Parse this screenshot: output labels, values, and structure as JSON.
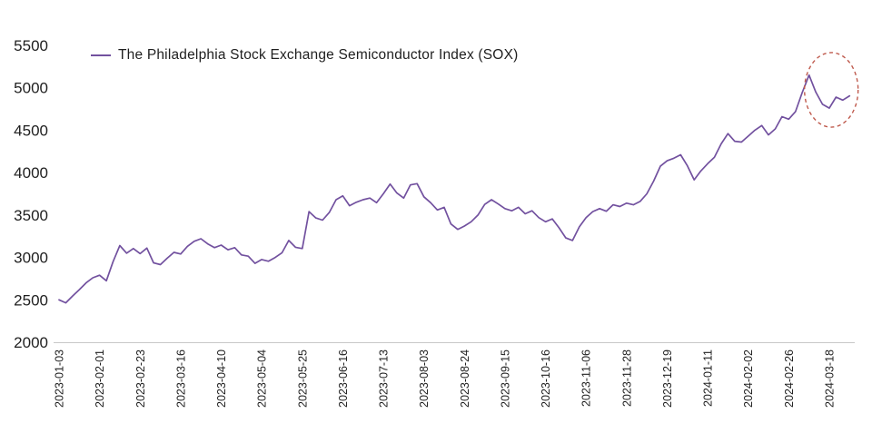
{
  "legend": {
    "label": "The Philadelphia Stock Exchange Semiconductor Index (SOX)"
  },
  "colors": {
    "line": "#72519f",
    "annotation": "#bf5a4d",
    "axis": "#c8c8c8",
    "text": "#1f1f1f"
  },
  "chart_data": {
    "type": "line",
    "title": "",
    "legend_entries": [
      "The Philadelphia Stock Exchange Semiconductor Index (SOX)"
    ],
    "legend_position": "top-left",
    "grid": false,
    "ylim": [
      2000,
      5500
    ],
    "yticks": [
      2000,
      2500,
      3000,
      3500,
      4000,
      4500,
      5000,
      5500
    ],
    "x_tick_labels": [
      "2023-01-03",
      "2023-02-01",
      "2023-02-23",
      "2023-03-16",
      "2023-04-10",
      "2023-05-04",
      "2023-05-25",
      "2023-06-16",
      "2023-07-13",
      "2023-08-03",
      "2023-08-24",
      "2023-09-15",
      "2023-10-16",
      "2023-11-06",
      "2023-11-28",
      "2023-12-19",
      "2024-01-11",
      "2024-02-02",
      "2024-02-26",
      "2024-03-18"
    ],
    "points_per_tick_interval": 6,
    "series": [
      {
        "name": "The Philadelphia Stock Exchange Semiconductor Index (SOX)",
        "color": "#72519f",
        "values": [
          2500,
          2465,
          2545,
          2620,
          2700,
          2760,
          2790,
          2725,
          2950,
          3140,
          3050,
          3105,
          3045,
          3110,
          2935,
          2915,
          2990,
          3060,
          3040,
          3130,
          3190,
          3220,
          3160,
          3115,
          3145,
          3090,
          3115,
          3030,
          3015,
          2930,
          2975,
          2955,
          3000,
          3055,
          3200,
          3120,
          3105,
          3540,
          3465,
          3440,
          3530,
          3680,
          3725,
          3610,
          3650,
          3680,
          3700,
          3645,
          3750,
          3865,
          3760,
          3700,
          3855,
          3870,
          3715,
          3645,
          3560,
          3590,
          3395,
          3330,
          3370,
          3420,
          3500,
          3625,
          3680,
          3630,
          3575,
          3550,
          3590,
          3515,
          3550,
          3470,
          3420,
          3455,
          3350,
          3230,
          3200,
          3360,
          3470,
          3540,
          3575,
          3545,
          3620,
          3600,
          3640,
          3620,
          3660,
          3750,
          3900,
          4075,
          4140,
          4170,
          4210,
          4080,
          3915,
          4020,
          4105,
          4180,
          4340,
          4460,
          4370,
          4360,
          4430,
          4500,
          4555,
          4445,
          4515,
          4660,
          4630,
          4720,
          4945,
          5150,
          4950,
          4805,
          4760,
          4890,
          4855,
          4905
        ]
      }
    ],
    "annotation": {
      "type": "dashed-ellipse",
      "center_tick": 19.05,
      "center_value": 4975,
      "rx_ticks": 0.66,
      "ry_value": 440,
      "color": "#bf5a4d"
    }
  }
}
